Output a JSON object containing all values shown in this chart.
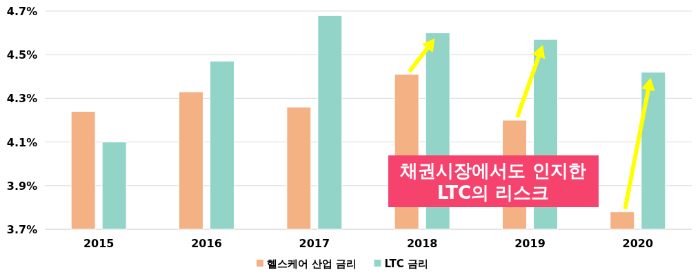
{
  "chart_data": {
    "type": "bar",
    "categories": [
      "2015",
      "2016",
      "2017",
      "2018",
      "2019",
      "2020"
    ],
    "series": [
      {
        "name": "헬스케어 산업 금리",
        "color": "#f4b183",
        "values": [
          4.24,
          4.33,
          4.26,
          4.41,
          4.2,
          3.78
        ]
      },
      {
        "name": "LTC 금리",
        "color": "#93d4c8",
        "values": [
          4.1,
          4.47,
          4.68,
          4.6,
          4.57,
          4.42
        ]
      }
    ],
    "ylim": [
      3.7,
      4.7
    ],
    "yticks": [
      {
        "value": 3.7,
        "label": "3.7%"
      },
      {
        "value": 3.9,
        "label": "3.9%"
      },
      {
        "value": 4.1,
        "label": "4.1%"
      },
      {
        "value": 4.3,
        "label": "4.3%"
      },
      {
        "value": 4.5,
        "label": "4.5%"
      },
      {
        "value": 4.7,
        "label": "4.7%"
      }
    ],
    "grid": "y",
    "legend": "bottom",
    "annotations": [
      "채권시장에서도 인지한\nLTC의 리스크"
    ]
  }
}
